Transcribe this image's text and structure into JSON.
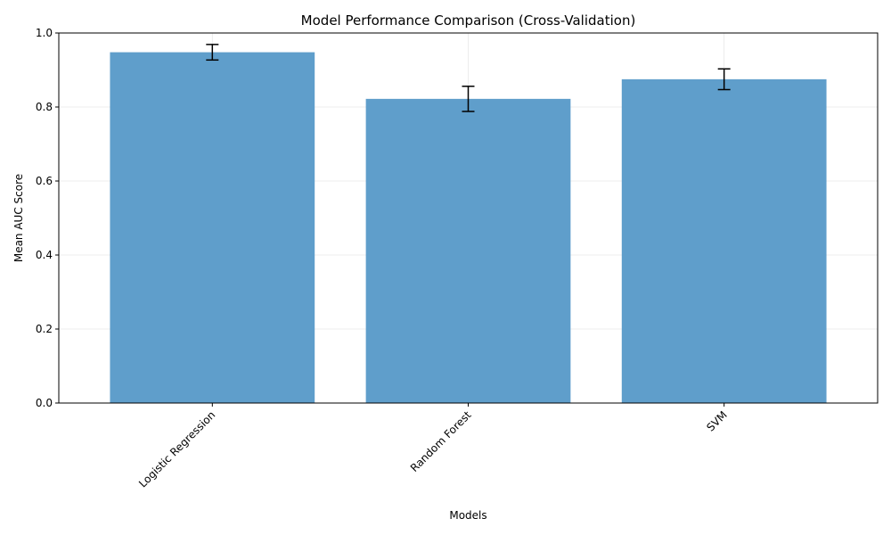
{
  "chart_data": {
    "type": "bar",
    "title": "Model Performance Comparison (Cross-Validation)",
    "xlabel": "Models",
    "ylabel": "Mean AUC Score",
    "categories": [
      "Logistic Regression",
      "Random Forest",
      "SVM"
    ],
    "values": [
      0.948,
      0.822,
      0.875
    ],
    "errors": [
      0.021,
      0.034,
      0.028
    ],
    "ylim": [
      0,
      1.0
    ],
    "yticks": [
      0.0,
      0.2,
      0.4,
      0.6,
      0.8,
      1.0
    ],
    "ytick_labels": [
      "0.0",
      "0.2",
      "0.4",
      "0.6",
      "0.8",
      "1.0"
    ],
    "grid": true,
    "bar_color": "#5f9ecb",
    "x_tick_rotation_deg": 45
  }
}
